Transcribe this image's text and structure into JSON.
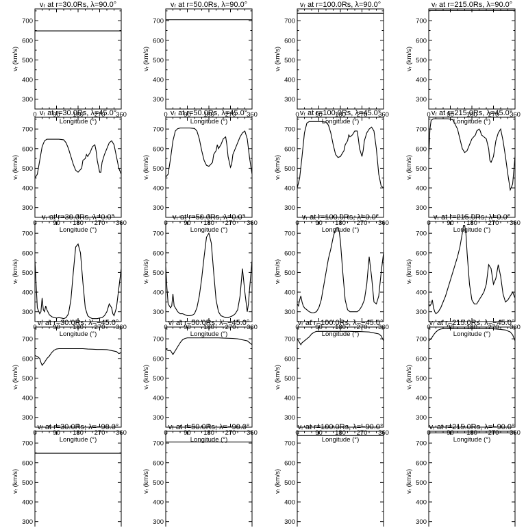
{
  "chart_data": {
    "type": "line",
    "panel_grid": {
      "rows": 5,
      "cols": 4
    },
    "shared": {
      "xlabel": "Longitude (°)",
      "ylabel": "vᵣ (km/s)",
      "xlim": [
        0,
        360
      ],
      "ylim": [
        250,
        760
      ],
      "xticks": [
        0,
        90,
        180,
        270,
        360
      ],
      "yticks": [
        300,
        400,
        500,
        600,
        700
      ],
      "xtick_labels": [
        "0",
        "90",
        "180",
        "270",
        "360"
      ],
      "ytick_labels": [
        "300",
        "400",
        "500",
        "600",
        "700"
      ]
    },
    "panels": [
      {
        "title": "vᵣ at r=30.0Rs, λ=90.0°",
        "x": [
          0,
          360
        ],
        "y": [
          648,
          648
        ]
      },
      {
        "title": "vᵣ at r=50.0Rs, λ=90.0°",
        "x": [
          0,
          360
        ],
        "y": [
          705,
          705
        ]
      },
      {
        "title": "vᵣ at r=100.0Rs, λ=90.0°",
        "x": [
          0,
          360
        ],
        "y": [
          738,
          738
        ]
      },
      {
        "title": "vᵣ at r=215.0Rs, λ=90.0°",
        "x": [
          0,
          360
        ],
        "y": [
          752,
          752
        ]
      },
      {
        "title": "vᵣ at r=30.0Rs, λ=45.0°",
        "x": [
          0,
          10,
          20,
          30,
          40,
          50,
          60,
          80,
          100,
          120,
          130,
          140,
          150,
          160,
          170,
          180,
          195,
          200,
          210,
          215,
          220,
          230,
          240,
          250,
          255,
          260,
          270,
          275,
          280,
          290,
          300,
          310,
          320,
          330,
          340,
          350,
          360
        ],
        "y": [
          450,
          470,
          540,
          610,
          640,
          648,
          648,
          648,
          648,
          645,
          630,
          600,
          560,
          520,
          490,
          480,
          500,
          540,
          550,
          570,
          560,
          580,
          610,
          620,
          590,
          540,
          480,
          480,
          530,
          570,
          600,
          630,
          640,
          620,
          560,
          500,
          470
        ]
      },
      {
        "title": "vᵣ at r=50.0Rs, λ=45.0°",
        "x": [
          0,
          10,
          20,
          30,
          40,
          50,
          60,
          80,
          100,
          120,
          130,
          140,
          150,
          160,
          170,
          180,
          195,
          200,
          210,
          215,
          220,
          230,
          240,
          250,
          255,
          260,
          270,
          275,
          280,
          290,
          300,
          310,
          320,
          330,
          340,
          350,
          360
        ],
        "y": [
          455,
          470,
          550,
          640,
          690,
          702,
          705,
          705,
          705,
          703,
          690,
          650,
          590,
          540,
          515,
          510,
          530,
          570,
          590,
          620,
          600,
          620,
          650,
          660,
          620,
          560,
          505,
          520,
          570,
          600,
          630,
          660,
          680,
          690,
          650,
          550,
          470
        ]
      },
      {
        "title": "vᵣ at r=100.0Rs, λ=45.0°",
        "x": [
          0,
          10,
          20,
          30,
          40,
          50,
          60,
          80,
          100,
          120,
          130,
          140,
          150,
          160,
          170,
          180,
          195,
          200,
          210,
          215,
          220,
          230,
          240,
          250,
          255,
          260,
          270,
          275,
          280,
          290,
          300,
          310,
          320,
          330,
          340,
          350,
          360
        ],
        "y": [
          400,
          450,
          560,
          680,
          730,
          738,
          738,
          738,
          738,
          735,
          720,
          680,
          620,
          570,
          555,
          560,
          590,
          620,
          640,
          670,
          660,
          670,
          690,
          690,
          650,
          600,
          560,
          590,
          640,
          680,
          700,
          710,
          690,
          600,
          470,
          410,
          400
        ]
      },
      {
        "title": "vᵣ at r=215.0Rs, λ=45.0°",
        "x": [
          0,
          5,
          10,
          20,
          30,
          40,
          50,
          60,
          80,
          100,
          120,
          130,
          140,
          150,
          160,
          170,
          180,
          195,
          200,
          210,
          215,
          220,
          230,
          240,
          250,
          255,
          260,
          270,
          275,
          280,
          290,
          300,
          310,
          320,
          330,
          340,
          350,
          360
        ],
        "y": [
          560,
          700,
          745,
          752,
          752,
          752,
          752,
          752,
          752,
          748,
          700,
          650,
          600,
          580,
          590,
          620,
          650,
          670,
          690,
          700,
          690,
          670,
          660,
          650,
          600,
          540,
          530,
          560,
          600,
          640,
          680,
          700,
          640,
          560,
          470,
          390,
          420,
          560
        ]
      },
      {
        "title": "vᵣ at r=30.0Rs, λ=0.0°",
        "x": [
          0,
          5,
          10,
          20,
          25,
          30,
          35,
          40,
          45,
          50,
          60,
          70,
          80,
          90,
          100,
          110,
          120,
          130,
          140,
          150,
          160,
          170,
          180,
          190,
          200,
          210,
          220,
          230,
          240,
          250,
          260,
          270,
          280,
          290,
          300,
          310,
          320,
          325,
          330,
          335,
          340,
          350,
          360
        ],
        "y": [
          560,
          440,
          320,
          290,
          300,
          370,
          310,
          300,
          330,
          310,
          285,
          275,
          270,
          268,
          270,
          268,
          265,
          270,
          290,
          360,
          500,
          630,
          645,
          600,
          450,
          320,
          280,
          270,
          265,
          265,
          265,
          268,
          270,
          280,
          300,
          340,
          320,
          290,
          280,
          300,
          320,
          420,
          520
        ]
      },
      {
        "title": "vᵣ at r=50.0Rs, λ=0.0°",
        "x": [
          0,
          5,
          10,
          20,
          25,
          30,
          35,
          40,
          50,
          60,
          70,
          80,
          90,
          100,
          110,
          120,
          130,
          140,
          150,
          160,
          170,
          180,
          190,
          200,
          210,
          220,
          230,
          240,
          250,
          260,
          270,
          280,
          290,
          300,
          310,
          320,
          330,
          340,
          345,
          350,
          360
        ],
        "y": [
          530,
          420,
          340,
          320,
          330,
          390,
          330,
          320,
          300,
          290,
          290,
          285,
          280,
          280,
          282,
          290,
          320,
          380,
          470,
          580,
          680,
          700,
          650,
          500,
          360,
          300,
          280,
          275,
          270,
          270,
          275,
          280,
          290,
          310,
          380,
          520,
          400,
          300,
          340,
          420,
          560
        ]
      },
      {
        "title": "vᵣ at r=100.0Rs, λ=0.0°",
        "x": [
          0,
          5,
          10,
          15,
          20,
          25,
          30,
          40,
          50,
          60,
          70,
          80,
          90,
          100,
          110,
          120,
          130,
          140,
          150,
          160,
          170,
          175,
          180,
          190,
          200,
          210,
          220,
          230,
          240,
          250,
          260,
          270,
          280,
          290,
          300,
          310,
          320,
          330,
          340,
          350,
          360
        ],
        "y": [
          340,
          330,
          360,
          380,
          350,
          330,
          320,
          310,
          300,
          295,
          295,
          300,
          320,
          360,
          430,
          500,
          570,
          620,
          680,
          725,
          730,
          710,
          660,
          500,
          360,
          310,
          300,
          300,
          300,
          300,
          310,
          330,
          360,
          440,
          580,
          480,
          350,
          340,
          380,
          500,
          600
        ]
      },
      {
        "title": "vᵣ at r=215.0Rs, λ=0.0°",
        "x": [
          0,
          5,
          10,
          15,
          20,
          25,
          30,
          40,
          50,
          60,
          70,
          80,
          90,
          100,
          110,
          120,
          130,
          140,
          145,
          150,
          155,
          160,
          170,
          180,
          190,
          200,
          210,
          220,
          230,
          240,
          250,
          260,
          270,
          280,
          290,
          300,
          310,
          320,
          330,
          340,
          350,
          360
        ],
        "y": [
          340,
          330,
          340,
          360,
          320,
          300,
          290,
          300,
          320,
          350,
          380,
          420,
          460,
          500,
          540,
          580,
          630,
          700,
          740,
          740,
          700,
          600,
          440,
          360,
          340,
          340,
          360,
          380,
          400,
          440,
          540,
          520,
          440,
          470,
          540,
          480,
          390,
          350,
          360,
          380,
          400,
          370
        ]
      },
      {
        "title": "vᵣ at r=30.0Rs, λ=−45.0°",
        "x": [
          0,
          10,
          20,
          25,
          30,
          40,
          50,
          60,
          70,
          80,
          90,
          100,
          120,
          140,
          160,
          180,
          200,
          220,
          240,
          260,
          280,
          300,
          320,
          340,
          350,
          360
        ],
        "y": [
          615,
          610,
          600,
          580,
          565,
          580,
          600,
          612,
          630,
          642,
          648,
          650,
          650,
          650,
          650,
          650,
          650,
          648,
          647,
          646,
          646,
          645,
          640,
          635,
          625,
          630
        ]
      },
      {
        "title": "vᵣ at r=50.0Rs, λ=−45.0°",
        "x": [
          0,
          5,
          10,
          20,
          25,
          30,
          40,
          50,
          60,
          70,
          80,
          90,
          100,
          120,
          140,
          160,
          180,
          200,
          220,
          240,
          260,
          280,
          300,
          320,
          340,
          350,
          360
        ],
        "y": [
          650,
          645,
          640,
          640,
          630,
          620,
          640,
          660,
          680,
          695,
          702,
          705,
          705,
          705,
          705,
          705,
          705,
          705,
          705,
          704,
          703,
          702,
          700,
          695,
          690,
          680,
          670
        ]
      },
      {
        "title": "vᵣ at r=100.0Rs, λ=−45.0°",
        "x": [
          0,
          5,
          10,
          15,
          20,
          30,
          40,
          50,
          60,
          70,
          80,
          90,
          100,
          120,
          140,
          160,
          180,
          200,
          220,
          240,
          260,
          280,
          300,
          320,
          340,
          350,
          360
        ],
        "y": [
          700,
          690,
          680,
          670,
          680,
          690,
          700,
          710,
          725,
          733,
          738,
          738,
          738,
          738,
          738,
          738,
          738,
          738,
          738,
          737,
          737,
          736,
          735,
          730,
          725,
          715,
          690
        ]
      },
      {
        "title": "vᵣ at r=215.0Rs, λ=−45.0°",
        "x": [
          0,
          10,
          20,
          30,
          40,
          50,
          60,
          80,
          100,
          120,
          140,
          160,
          180,
          200,
          220,
          240,
          260,
          280,
          300,
          320,
          330,
          340,
          350,
          360
        ],
        "y": [
          690,
          700,
          720,
          735,
          745,
          750,
          752,
          752,
          752,
          752,
          752,
          752,
          752,
          752,
          752,
          752,
          752,
          750,
          748,
          745,
          740,
          735,
          720,
          690
        ]
      },
      {
        "title": "vᵣ at r=30.0Rs, λ=−90.0°",
        "x": [
          0,
          360
        ],
        "y": [
          648,
          648
        ]
      },
      {
        "title": "vᵣ at r=50.0Rs, λ=−90.0°",
        "x": [
          0,
          360
        ],
        "y": [
          705,
          705
        ]
      },
      {
        "title": "vᵣ at r=100.0Rs, λ=−90.0°",
        "x": [
          0,
          360
        ],
        "y": [
          738,
          738
        ]
      },
      {
        "title": "vᵣ at r=215.0Rs, λ=−90.0°",
        "x": [
          0,
          360
        ],
        "y": [
          752,
          752
        ]
      }
    ]
  }
}
